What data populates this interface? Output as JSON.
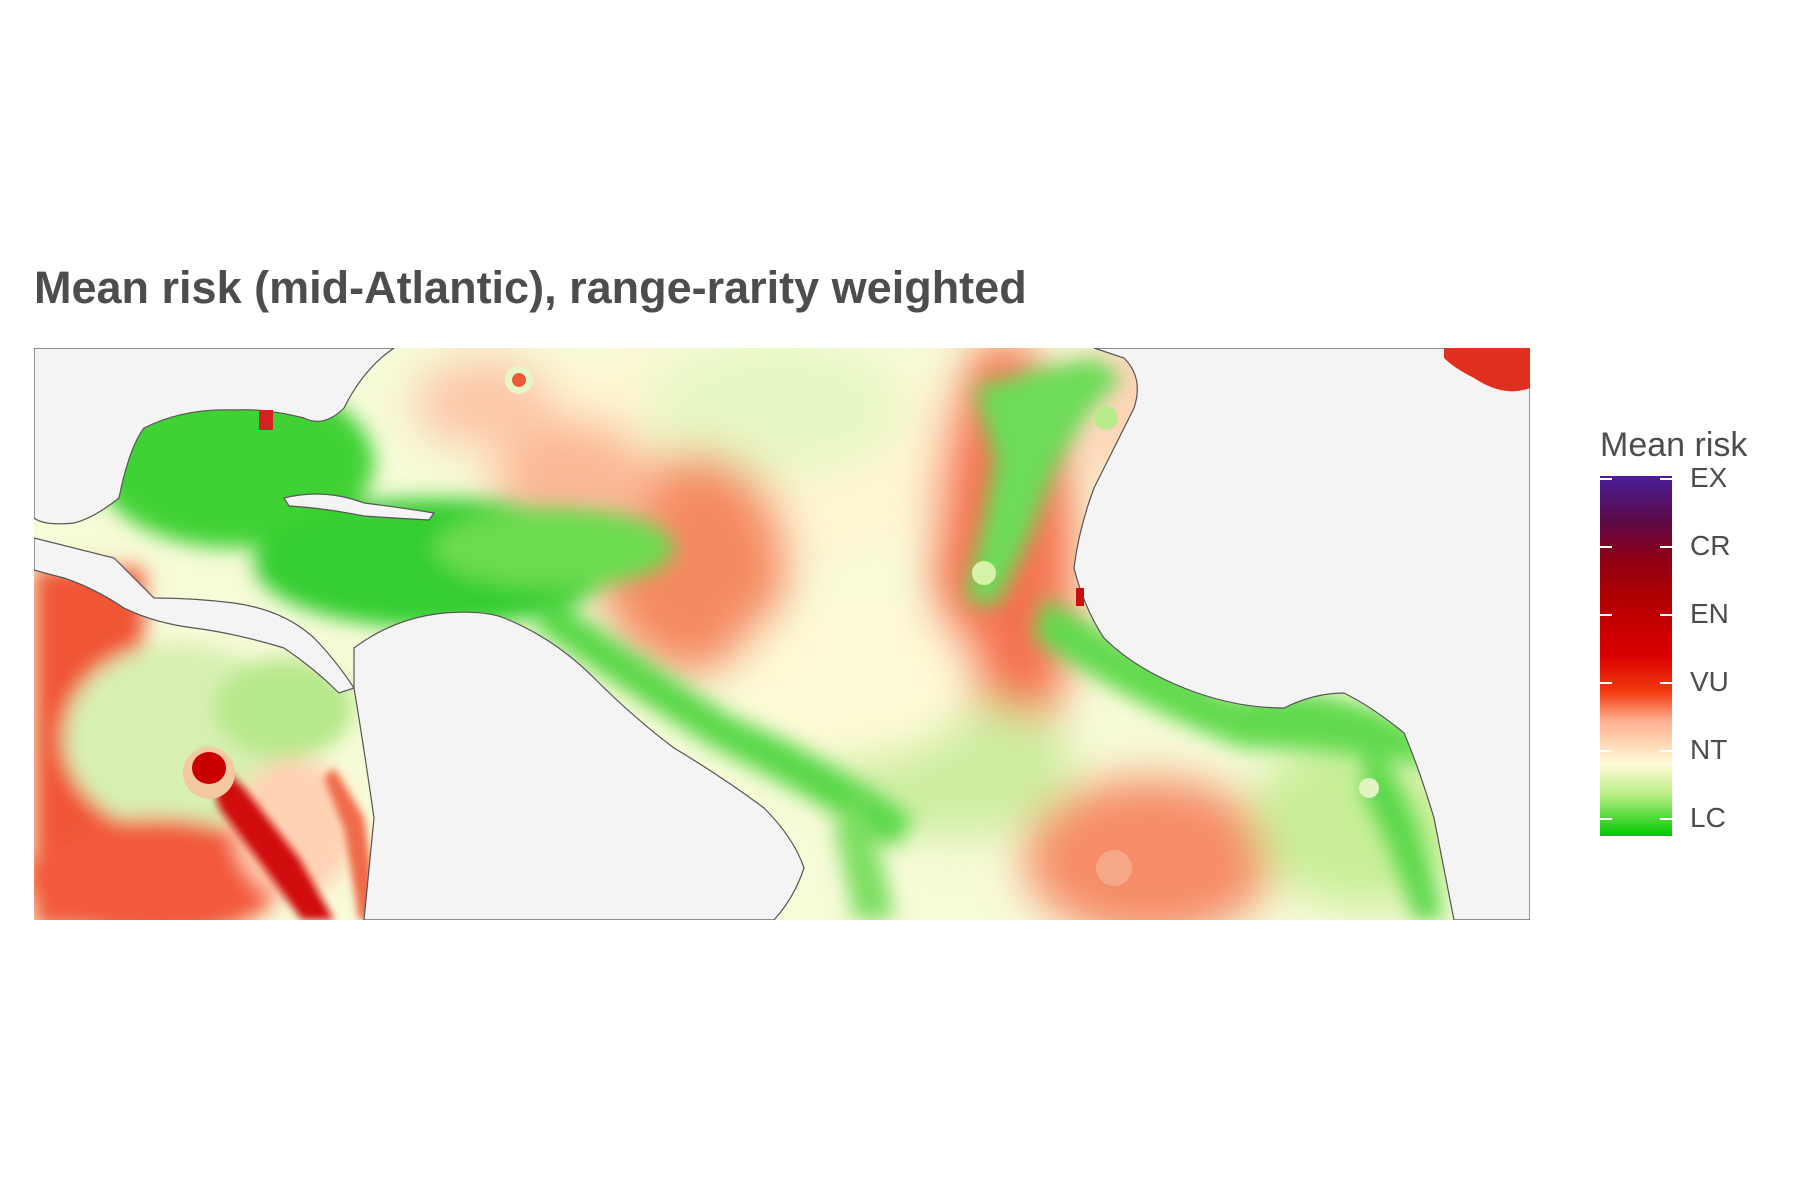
{
  "title": "Mean risk (mid-Atlantic), range-rarity weighted",
  "legend": {
    "title": "Mean risk",
    "labels": [
      "EX",
      "CR",
      "EN",
      "VU",
      "NT",
      "LC"
    ],
    "gradient_colors": [
      "#4b1e9a",
      "#8a0018",
      "#b40000",
      "#dc0000",
      "#ffb090",
      "#fffad6",
      "#00c800"
    ]
  },
  "colors": {
    "background": "#f4f4f4",
    "land": "#f4f4f4",
    "coastline": "#555555",
    "least_concern": "#00c800",
    "near_threatened": "#fffad6",
    "vulnerable": "#f26040",
    "endangered": "#c80000",
    "title_text": "#4d4d4d"
  }
}
